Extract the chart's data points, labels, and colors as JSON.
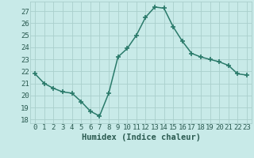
{
  "x": [
    0,
    1,
    2,
    3,
    4,
    5,
    6,
    7,
    8,
    9,
    10,
    11,
    12,
    13,
    14,
    15,
    16,
    17,
    18,
    19,
    20,
    21,
    22,
    23
  ],
  "y": [
    21.8,
    21.0,
    20.6,
    20.3,
    20.2,
    19.5,
    18.7,
    18.3,
    20.2,
    23.2,
    23.9,
    25.0,
    26.5,
    27.35,
    27.25,
    25.7,
    24.5,
    23.5,
    23.2,
    23.0,
    22.8,
    22.5,
    21.8,
    21.7
  ],
  "line_color": "#2a7a6a",
  "marker": "+",
  "bg_color": "#c8eae8",
  "grid_color": "#aacfcc",
  "xlabel": "Humidex (Indice chaleur)",
  "ylabel_ticks": [
    18,
    19,
    20,
    21,
    22,
    23,
    24,
    25,
    26,
    27
  ],
  "ylim": [
    17.7,
    27.8
  ],
  "xlim": [
    -0.5,
    23.5
  ],
  "xtick_labels": [
    "0",
    "1",
    "2",
    "3",
    "4",
    "5",
    "6",
    "7",
    "8",
    "9",
    "10",
    "11",
    "12",
    "13",
    "14",
    "15",
    "16",
    "17",
    "18",
    "19",
    "20",
    "21",
    "22",
    "23"
  ],
  "font_color": "#2a5a50",
  "xlabel_fontsize": 7.5,
  "tick_fontsize": 6.5,
  "linewidth": 1.1,
  "markersize": 4,
  "markeredgewidth": 1.2
}
